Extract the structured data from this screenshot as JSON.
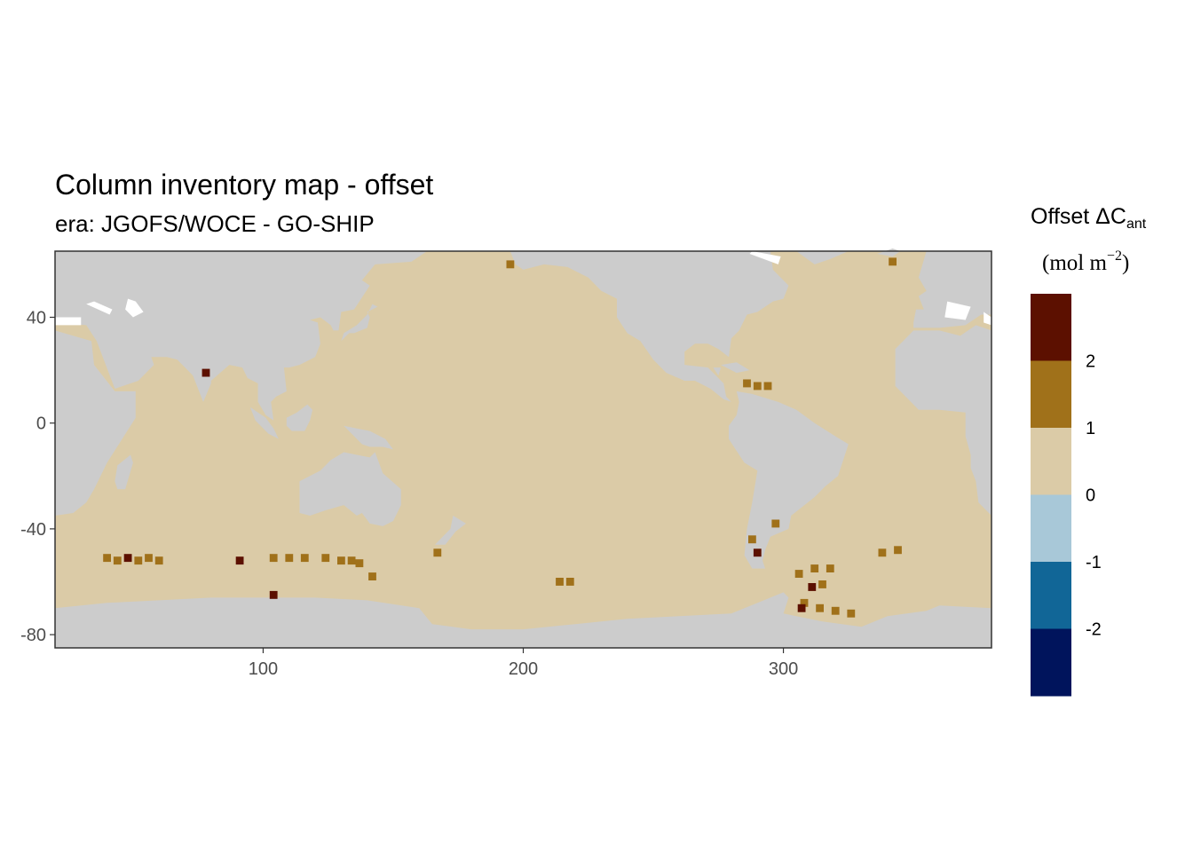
{
  "chart_data": {
    "type": "heatmap",
    "title": "Column inventory map - offset",
    "subtitle": "era: JGOFS/WOCE - GO-SHIP",
    "xlim": [
      20,
      380
    ],
    "ylim": [
      -85,
      65
    ],
    "x_ticks": [
      100,
      200,
      300
    ],
    "y_ticks": [
      40,
      0,
      -40,
      -80
    ],
    "legend": {
      "title_main": "Offset ΔC",
      "title_sub": "ant",
      "unit_main": "(mol m",
      "unit_sup": "−2",
      "unit_close": ")",
      "breaks": [
        -3,
        -2,
        -1,
        0,
        1,
        2,
        3
      ],
      "colors": [
        "#00145c",
        "#116697",
        "#a8c8d8",
        "#dbcba7",
        "#a0711a",
        "#5c1000"
      ],
      "labels": [
        "-2",
        "-1",
        "0",
        "1",
        "2"
      ],
      "placement": "right"
    },
    "colors": {
      "land": "#cccccc",
      "ocean_default": "#dbcba7",
      "no_data": "#ffffff",
      "panel_border": "#333333"
    },
    "hotspots": [
      {
        "lon": 40,
        "lat": -51,
        "value": 1.5
      },
      {
        "lon": 44,
        "lat": -52,
        "value": 1.5
      },
      {
        "lon": 48,
        "lat": -51,
        "value": 2.5
      },
      {
        "lon": 52,
        "lat": -52,
        "value": 1.5
      },
      {
        "lon": 56,
        "lat": -51,
        "value": 1.5
      },
      {
        "lon": 60,
        "lat": -52,
        "value": 1.5
      },
      {
        "lon": 104,
        "lat": -51,
        "value": 1.5
      },
      {
        "lon": 110,
        "lat": -51,
        "value": 1.5
      },
      {
        "lon": 116,
        "lat": -51,
        "value": 1.5
      },
      {
        "lon": 124,
        "lat": -51,
        "value": 1.5
      },
      {
        "lon": 130,
        "lat": -52,
        "value": 1.5
      },
      {
        "lon": 134,
        "lat": -52,
        "value": 1.5
      },
      {
        "lon": 137,
        "lat": -53,
        "value": 1.5
      },
      {
        "lon": 78,
        "lat": 19,
        "value": 2.5
      },
      {
        "lon": 91,
        "lat": -52,
        "value": 2.5
      },
      {
        "lon": 104,
        "lat": -65,
        "value": 2.5
      },
      {
        "lon": 167,
        "lat": -49,
        "value": 1.5
      },
      {
        "lon": 214,
        "lat": -60,
        "value": 1.5
      },
      {
        "lon": 218,
        "lat": -60,
        "value": 1.5
      },
      {
        "lon": 286,
        "lat": 15,
        "value": 1.5
      },
      {
        "lon": 290,
        "lat": 14,
        "value": 1.5
      },
      {
        "lon": 294,
        "lat": 14,
        "value": 1.5
      },
      {
        "lon": 288,
        "lat": -44,
        "value": 1.5
      },
      {
        "lon": 290,
        "lat": -49,
        "value": 2.5
      },
      {
        "lon": 297,
        "lat": -38,
        "value": 1.5
      },
      {
        "lon": 306,
        "lat": -57,
        "value": 1.5
      },
      {
        "lon": 312,
        "lat": -55,
        "value": 1.5
      },
      {
        "lon": 318,
        "lat": -55,
        "value": 1.5
      },
      {
        "lon": 311,
        "lat": -62,
        "value": 2.5
      },
      {
        "lon": 315,
        "lat": -61,
        "value": 1.5
      },
      {
        "lon": 308,
        "lat": -68,
        "value": 1.5
      },
      {
        "lon": 314,
        "lat": -70,
        "value": 1.5
      },
      {
        "lon": 320,
        "lat": -71,
        "value": 1.5
      },
      {
        "lon": 326,
        "lat": -72,
        "value": 1.5
      },
      {
        "lon": 307,
        "lat": -70,
        "value": 2.5
      },
      {
        "lon": 338,
        "lat": -49,
        "value": 1.5
      },
      {
        "lon": 344,
        "lat": -48,
        "value": 1.5
      },
      {
        "lon": 142,
        "lat": -58,
        "value": 1.5
      },
      {
        "lon": 195,
        "lat": 60,
        "value": 1.5
      },
      {
        "lon": 342,
        "lat": 61,
        "value": 1.5
      }
    ]
  }
}
